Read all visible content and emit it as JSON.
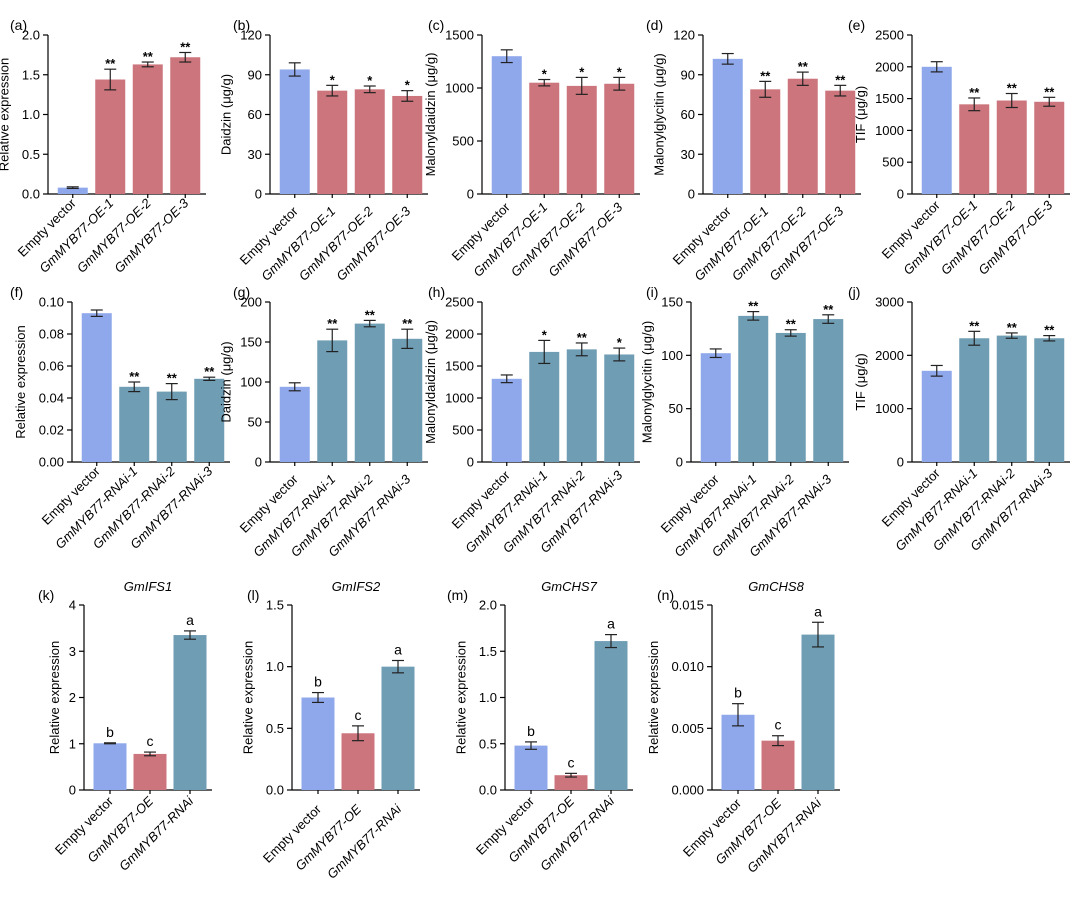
{
  "colors": {
    "ev": "#8fa8ec",
    "oe": "#cc757c",
    "rnai": "#6f9db4",
    "axis": "#000000"
  },
  "chart_data": [
    {
      "type": "bar",
      "panel": "(a)",
      "title": "",
      "ylabel": "Relative expression",
      "ylim": [
        0,
        2.0
      ],
      "yticks": [
        "0.0",
        "0.5",
        "1.0",
        "1.5",
        "2.0"
      ],
      "categories": [
        "Empty vector",
        "GmMYB77-OE-1",
        "GmMYB77-OE-2",
        "GmMYB77-OE-3"
      ],
      "values": [
        0.08,
        1.44,
        1.63,
        1.72
      ],
      "errors": [
        0.01,
        0.13,
        0.03,
        0.06
      ],
      "sig": [
        "",
        "**",
        "**",
        "**"
      ]
    },
    {
      "type": "bar",
      "panel": "(b)",
      "title": "",
      "ylabel": "Daidzin (μg/g)",
      "ylim": [
        0,
        120
      ],
      "yticks": [
        "0",
        "30",
        "60",
        "90",
        "120"
      ],
      "categories": [
        "Empty vector",
        "GmMYB77-OE-1",
        "GmMYB77-OE-2",
        "GmMYB77-OE-3"
      ],
      "values": [
        94,
        78,
        79,
        74
      ],
      "errors": [
        5,
        4,
        2.5,
        4
      ],
      "sig": [
        "",
        "*",
        "*",
        "*"
      ]
    },
    {
      "type": "bar",
      "panel": "(c)",
      "title": "",
      "ylabel": "Malonyldaidzin (μg/g)",
      "ylim": [
        0,
        1500
      ],
      "yticks": [
        "0",
        "500",
        "1000",
        "1500"
      ],
      "categories": [
        "Empty vector",
        "GmMYB77-OE-1",
        "GmMYB77-OE-2",
        "GmMYB77-OE-3"
      ],
      "values": [
        1300,
        1050,
        1020,
        1040
      ],
      "errors": [
        60,
        30,
        80,
        60
      ],
      "sig": [
        "",
        "*",
        "*",
        "*"
      ]
    },
    {
      "type": "bar",
      "panel": "(d)",
      "title": "",
      "ylabel": "Malonylglycitin (μg/g)",
      "ylim": [
        0,
        120
      ],
      "yticks": [
        "0",
        "30",
        "60",
        "90",
        "120"
      ],
      "categories": [
        "Empty vector",
        "GmMYB77-OE-1",
        "GmMYB77-OE-2",
        "GmMYB77-OE-3"
      ],
      "values": [
        102,
        79,
        87,
        78
      ],
      "errors": [
        4,
        6,
        5,
        4
      ],
      "sig": [
        "",
        "**",
        "**",
        "**"
      ]
    },
    {
      "type": "bar",
      "panel": "(e)",
      "title": "",
      "ylabel": "TIF (μg/g)",
      "ylim": [
        0,
        2500
      ],
      "yticks": [
        "0",
        "500",
        "1000",
        "1500",
        "2000",
        "2500"
      ],
      "categories": [
        "Empty vector",
        "GmMYB77-OE-1",
        "GmMYB77-OE-2",
        "GmMYB77-OE-3"
      ],
      "values": [
        2000,
        1410,
        1470,
        1450
      ],
      "errors": [
        80,
        100,
        110,
        70
      ],
      "sig": [
        "",
        "**",
        "**",
        "**"
      ]
    },
    {
      "type": "bar",
      "panel": "(f)",
      "title": "",
      "ylabel": "Relative expression",
      "ylim": [
        0,
        0.1
      ],
      "yticks": [
        "0.00",
        "0.02",
        "0.04",
        "0.06",
        "0.08",
        "0.10"
      ],
      "categories": [
        "Empty vector",
        "GmMYB77-RNAi-1",
        "GmMYB77-RNAi-2",
        "GmMYB77-RNAi-3"
      ],
      "values": [
        0.093,
        0.047,
        0.044,
        0.052
      ],
      "errors": [
        0.002,
        0.003,
        0.005,
        0.001
      ],
      "sig": [
        "",
        "**",
        "**",
        "**"
      ]
    },
    {
      "type": "bar",
      "panel": "(g)",
      "title": "",
      "ylabel": "Daidzin (μg/g)",
      "ylim": [
        0,
        200
      ],
      "yticks": [
        "0",
        "50",
        "100",
        "150",
        "200"
      ],
      "categories": [
        "Empty vector",
        "GmMYB77-RNAi-1",
        "GmMYB77-RNAi-2",
        "GmMYB77-RNAi-3"
      ],
      "values": [
        94,
        152,
        173,
        154
      ],
      "errors": [
        5,
        14,
        4,
        12
      ],
      "sig": [
        "",
        "**",
        "**",
        "**"
      ]
    },
    {
      "type": "bar",
      "panel": "(h)",
      "title": "",
      "ylabel": "Malonyldaidzin (μg/g)",
      "ylim": [
        0,
        2500
      ],
      "yticks": [
        "0",
        "500",
        "1000",
        "1500",
        "2000",
        "2500"
      ],
      "categories": [
        "Empty vector",
        "GmMYB77-RNAi-1",
        "GmMYB77-RNAi-2",
        "GmMYB77-RNAi-3"
      ],
      "values": [
        1300,
        1720,
        1760,
        1680
      ],
      "errors": [
        60,
        180,
        100,
        100
      ],
      "sig": [
        "",
        "*",
        "**",
        "*"
      ]
    },
    {
      "type": "bar",
      "panel": "(i)",
      "title": "",
      "ylabel": "Malonylglycitin (μg/g)",
      "ylim": [
        0,
        150
      ],
      "yticks": [
        "0",
        "50",
        "100",
        "150"
      ],
      "categories": [
        "Empty vector",
        "GmMYB77-RNAi-1",
        "GmMYB77-RNAi-2",
        "GmMYB77-RNAi-3"
      ],
      "values": [
        102,
        137,
        121,
        134
      ],
      "errors": [
        4,
        4,
        3,
        4
      ],
      "sig": [
        "",
        "**",
        "**",
        "**"
      ]
    },
    {
      "type": "bar",
      "panel": "(j)",
      "title": "",
      "ylabel": "TIF (μg/g)",
      "ylim": [
        0,
        3000
      ],
      "yticks": [
        "0",
        "1000",
        "2000",
        "3000"
      ],
      "categories": [
        "Empty vector",
        "GmMYB77-RNAi-1",
        "GmMYB77-RNAi-2",
        "GmMYB77-RNAi-3"
      ],
      "values": [
        1710,
        2320,
        2370,
        2320
      ],
      "errors": [
        100,
        130,
        50,
        50
      ],
      "sig": [
        "",
        "**",
        "**",
        "**"
      ]
    },
    {
      "type": "bar",
      "panel": "(k)",
      "title": "GmIFS1",
      "ylabel": "Relative expression",
      "ylim": [
        0,
        4
      ],
      "yticks": [
        "0",
        "1",
        "2",
        "3",
        "4"
      ],
      "categories": [
        "Empty vector",
        "GmMYB77-OE",
        "GmMYB77-RNAi"
      ],
      "values": [
        1.01,
        0.78,
        3.35
      ],
      "errors": [
        0.01,
        0.04,
        0.09
      ],
      "sig": [
        "b",
        "c",
        "a"
      ]
    },
    {
      "type": "bar",
      "panel": "(l)",
      "title": "GmIFS2",
      "ylabel": "Relative expression",
      "ylim": [
        0,
        1.5
      ],
      "yticks": [
        "0.0",
        "0.5",
        "1.0",
        "1.5"
      ],
      "categories": [
        "Empty vector",
        "GmMYB77-OE",
        "GmMYB77-RNAi"
      ],
      "values": [
        0.75,
        0.46,
        1.0
      ],
      "errors": [
        0.04,
        0.06,
        0.05
      ],
      "sig": [
        "b",
        "c",
        "a"
      ]
    },
    {
      "type": "bar",
      "panel": "(m)",
      "title": "GmCHS7",
      "ylabel": "Relative expression",
      "ylim": [
        0,
        2.0
      ],
      "yticks": [
        "0.0",
        "0.5",
        "1.0",
        "1.5",
        "2.0"
      ],
      "categories": [
        "Empty vector",
        "GmMYB77-OE",
        "GmMYB77-RNAi"
      ],
      "values": [
        0.48,
        0.16,
        1.61
      ],
      "errors": [
        0.04,
        0.02,
        0.07
      ],
      "sig": [
        "b",
        "c",
        "a"
      ]
    },
    {
      "type": "bar",
      "panel": "(n)",
      "title": "GmCHS8",
      "ylabel": "Relative expression",
      "ylim": [
        0,
        0.015
      ],
      "yticks": [
        "0.000",
        "0.005",
        "0.010",
        "0.015"
      ],
      "categories": [
        "Empty vector",
        "GmMYB77-OE",
        "GmMYB77-RNAi"
      ],
      "values": [
        0.0061,
        0.004,
        0.0126
      ],
      "errors": [
        0.0009,
        0.0004,
        0.001
      ],
      "sig": [
        "b",
        "c",
        "a"
      ]
    }
  ]
}
